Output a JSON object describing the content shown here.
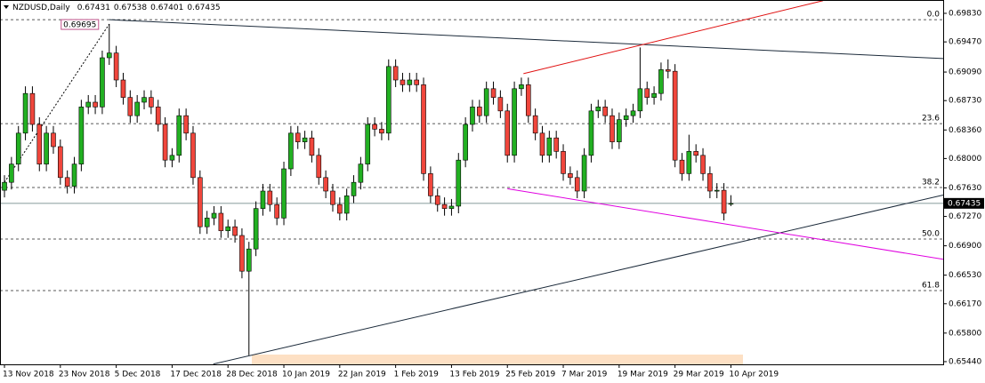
{
  "chart_data": {
    "type": "candlestick",
    "title": "NZDUSD,Daily",
    "categories": [
      "13 Nov 2018",
      null,
      null,
      null,
      null,
      null,
      null,
      null,
      "23 Nov 2018",
      null,
      null,
      null,
      null,
      null,
      null,
      null,
      "5 Dec 2018",
      null,
      null,
      null,
      null,
      null,
      null,
      null,
      "17 Dec 2018",
      null,
      null,
      null,
      null,
      null,
      null,
      null,
      "28 Dec 2018",
      null,
      null,
      null,
      null,
      null,
      null,
      null,
      "10 Jan 2019",
      null,
      null,
      null,
      null,
      null,
      null,
      null,
      "22 Jan 2019",
      null,
      null,
      null,
      null,
      null,
      null,
      null,
      "1 Feb 2019",
      null,
      null,
      null,
      null,
      null,
      null,
      null,
      "13 Feb 2019",
      null,
      null,
      null,
      null,
      null,
      null,
      null,
      "25 Feb 2019",
      null,
      null,
      null,
      null,
      null,
      null,
      null,
      "7 Mar 2019",
      null,
      null,
      null,
      null,
      null,
      null,
      null,
      "19 Mar 2019",
      null,
      null,
      null,
      null,
      null,
      null,
      null,
      "29 Mar 2019",
      null,
      null,
      null,
      null,
      null,
      null,
      null,
      "10 Apr 2019"
    ],
    "open": [
      0.676,
      0.677,
      0.6793,
      0.6832,
      0.6882,
      0.6843,
      0.6793,
      0.6832,
      0.6815,
      0.6776,
      0.6765,
      0.6793,
      0.6865,
      0.6871,
      0.6865,
      0.6927,
      0.6933,
      0.6899,
      0.6877,
      0.6854,
      0.6871,
      0.6877,
      0.6865,
      0.6843,
      0.6798,
      0.6804,
      0.6854,
      0.6832,
      0.6776,
      0.6714,
      0.6725,
      0.6731,
      0.6709,
      0.6714,
      0.6703,
      0.6658,
      0.6686,
      0.6737,
      0.6759,
      0.6742,
      0.6725,
      0.6787,
      0.6832,
      0.6821,
      0.6826,
      0.6804,
      0.6776,
      0.6759,
      0.6742,
      0.6731,
      0.6753,
      0.677,
      0.6793,
      0.6843,
      0.6837,
      0.6832,
      0.6916,
      0.6899,
      0.6893,
      0.6899,
      0.6893,
      0.6781,
      0.6753,
      0.6742,
      0.6737,
      0.674,
      0.6798,
      0.6843,
      0.6865,
      0.6854,
      0.6888,
      0.6877,
      0.686,
      0.6804,
      0.6888,
      0.6893,
      0.6854,
      0.6832,
      0.6804,
      0.6826,
      0.6809,
      0.6781,
      0.6776,
      0.6759,
      0.6804,
      0.686,
      0.6865,
      0.6854,
      0.6821,
      0.6849,
      0.6854,
      0.686,
      0.6888,
      0.6877,
      0.6882,
      0.6912,
      0.691,
      0.6798,
      0.6781,
      0.6809,
      0.6804,
      0.6781,
      0.6759,
      0.676,
      0.67431
    ],
    "high": [
      0.6779,
      0.6802,
      0.6841,
      0.6891,
      0.6891,
      0.6852,
      0.6841,
      0.6841,
      0.6824,
      0.6785,
      0.6802,
      0.6874,
      0.688,
      0.688,
      0.6936,
      0.69695,
      0.6942,
      0.6908,
      0.6886,
      0.688,
      0.6886,
      0.6886,
      0.6874,
      0.6852,
      0.6813,
      0.6863,
      0.6863,
      0.6841,
      0.6785,
      0.6734,
      0.674,
      0.674,
      0.6723,
      0.6723,
      0.6712,
      0.6695,
      0.6746,
      0.6768,
      0.6768,
      0.6751,
      0.6796,
      0.6841,
      0.6841,
      0.6835,
      0.6835,
      0.6813,
      0.6785,
      0.6768,
      0.6751,
      0.6762,
      0.6779,
      0.6802,
      0.6852,
      0.6852,
      0.6846,
      0.6925,
      0.6925,
      0.6908,
      0.6908,
      0.6908,
      0.6902,
      0.679,
      0.6762,
      0.6751,
      0.6749,
      0.6807,
      0.6852,
      0.6874,
      0.6874,
      0.6897,
      0.6897,
      0.6886,
      0.6869,
      0.6897,
      0.6902,
      0.6902,
      0.6863,
      0.6841,
      0.6835,
      0.6835,
      0.6818,
      0.679,
      0.6785,
      0.6813,
      0.6869,
      0.6874,
      0.6874,
      0.6863,
      0.6858,
      0.6863,
      0.6869,
      0.694,
      0.6897,
      0.6891,
      0.6921,
      0.6925,
      0.6919,
      0.6807,
      0.683,
      0.6818,
      0.6813,
      0.679,
      0.6769,
      0.6769,
      0.67538
    ],
    "low": [
      0.6751,
      0.6761,
      0.6784,
      0.6823,
      0.6834,
      0.6784,
      0.6784,
      0.6806,
      0.6767,
      0.6756,
      0.6756,
      0.6784,
      0.6856,
      0.6856,
      0.6856,
      0.6918,
      0.689,
      0.6868,
      0.6845,
      0.6845,
      0.6862,
      0.6856,
      0.6834,
      0.6789,
      0.6789,
      0.6795,
      0.6823,
      0.6767,
      0.6705,
      0.6705,
      0.6716,
      0.67,
      0.67,
      0.6694,
      0.6649,
      0.6552,
      0.6677,
      0.6728,
      0.6733,
      0.6716,
      0.6716,
      0.6778,
      0.6812,
      0.6812,
      0.6795,
      0.6767,
      0.675,
      0.6733,
      0.6722,
      0.6722,
      0.6744,
      0.6761,
      0.6784,
      0.6828,
      0.6823,
      0.6823,
      0.689,
      0.6884,
      0.6884,
      0.6884,
      0.6772,
      0.6744,
      0.6733,
      0.6728,
      0.6728,
      0.6731,
      0.6789,
      0.6834,
      0.6845,
      0.6845,
      0.6868,
      0.6851,
      0.6795,
      0.6795,
      0.6879,
      0.6845,
      0.6823,
      0.6795,
      0.6795,
      0.68,
      0.6772,
      0.6767,
      0.675,
      0.675,
      0.6795,
      0.6851,
      0.6845,
      0.6812,
      0.6812,
      0.684,
      0.6845,
      0.6851,
      0.6868,
      0.6868,
      0.6873,
      0.6901,
      0.6789,
      0.6772,
      0.6772,
      0.6795,
      0.6772,
      0.675,
      0.675,
      0.6722,
      0.67401
    ],
    "close": [
      0.677,
      0.6793,
      0.6832,
      0.6882,
      0.6843,
      0.6793,
      0.6832,
      0.6815,
      0.6776,
      0.6765,
      0.6793,
      0.6865,
      0.6871,
      0.6865,
      0.6927,
      0.6933,
      0.6899,
      0.6877,
      0.6854,
      0.6871,
      0.6877,
      0.6865,
      0.6843,
      0.6798,
      0.6804,
      0.6854,
      0.6832,
      0.6776,
      0.6714,
      0.6725,
      0.6731,
      0.6709,
      0.6714,
      0.6703,
      0.6658,
      0.6686,
      0.6737,
      0.6759,
      0.6742,
      0.6725,
      0.6787,
      0.6832,
      0.6821,
      0.6826,
      0.6804,
      0.6776,
      0.6759,
      0.6742,
      0.6731,
      0.6753,
      0.677,
      0.6793,
      0.6843,
      0.6837,
      0.6832,
      0.6916,
      0.6899,
      0.6893,
      0.6899,
      0.6893,
      0.6781,
      0.6753,
      0.6742,
      0.6737,
      0.674,
      0.6798,
      0.6843,
      0.6865,
      0.6854,
      0.6888,
      0.6877,
      0.686,
      0.6804,
      0.6888,
      0.6893,
      0.6854,
      0.6832,
      0.6804,
      0.6826,
      0.6809,
      0.6781,
      0.6776,
      0.6759,
      0.6804,
      0.686,
      0.6865,
      0.6854,
      0.6821,
      0.6849,
      0.6854,
      0.686,
      0.6888,
      0.6877,
      0.6882,
      0.6912,
      0.691,
      0.6798,
      0.6781,
      0.6809,
      0.6804,
      0.6781,
      0.6759,
      0.676,
      0.6731,
      0.67435
    ],
    "up_color": "#22b022",
    "down_color": "#f0463c",
    "xlim": [
      -0.64,
      134.39
    ],
    "ylim": [
      0.65406,
      0.69998
    ],
    "yticks": [
      {
        "value": 0.6983,
        "label": "0.69830"
      },
      {
        "value": 0.6947,
        "label": "0.69470"
      },
      {
        "value": 0.6909,
        "label": "0.69090"
      },
      {
        "value": 0.6873,
        "label": "0.68730"
      },
      {
        "value": 0.6836,
        "label": "0.68360"
      },
      {
        "value": 0.68,
        "label": "0.68000"
      },
      {
        "value": 0.6763,
        "label": "0.67630"
      },
      {
        "value": 0.6727,
        "label": "0.67270"
      },
      {
        "value": 0.669,
        "label": "0.66900"
      },
      {
        "value": 0.6653,
        "label": "0.66530"
      },
      {
        "value": 0.6617,
        "label": "0.66170"
      },
      {
        "value": 0.658,
        "label": "0.65800"
      },
      {
        "value": 0.6544,
        "label": "0.65440"
      }
    ],
    "grid": false,
    "fib_levels": [
      {
        "label": "0.0",
        "price": 0.6975
      },
      {
        "label": "23.6",
        "price": 0.6844
      },
      {
        "label": "38.2",
        "price": 0.67635
      },
      {
        "label": "50.0",
        "price": 0.66985
      },
      {
        "label": "61.8",
        "price": 0.66336
      }
    ],
    "trend_lines": [
      {
        "color": "#000000",
        "style": "dotted",
        "points": [
          [
            0,
            0.677
          ],
          [
            15,
            0.69695
          ]
        ]
      },
      {
        "color": "#1b2a3a",
        "style": "solid",
        "points": [
          [
            15,
            0.6975
          ],
          [
            134.39,
            0.6926
          ]
        ]
      },
      {
        "color": "#1b2a3a",
        "style": "solid",
        "points": [
          [
            29.9,
            0.6541
          ],
          [
            134.39,
            0.6754
          ]
        ]
      },
      {
        "color": "#e01010",
        "style": "solid",
        "points": [
          [
            74.3,
            0.6907
          ],
          [
            117.2,
            0.6999
          ]
        ]
      },
      {
        "color": "#e000e0",
        "style": "solid",
        "points": [
          [
            72,
            0.6762
          ],
          [
            134.39,
            0.6673
          ]
        ]
      }
    ]
  }
}
